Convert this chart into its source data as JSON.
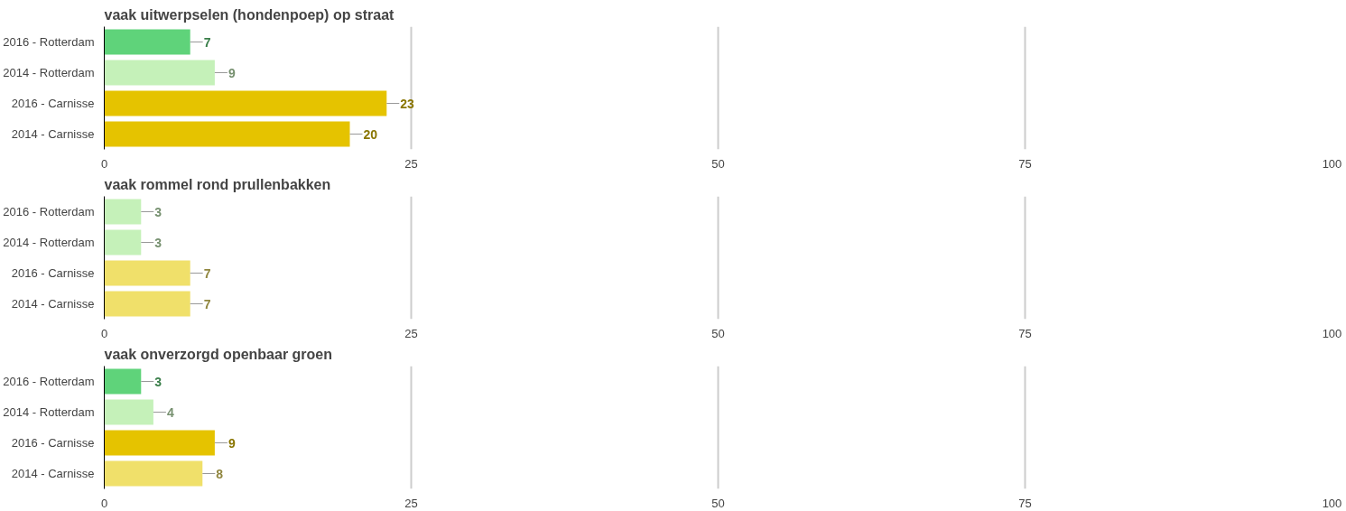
{
  "chart_data": [
    {
      "type": "bar",
      "orientation": "horizontal",
      "title": "vaak uitwerpselen (hondenpoep) op straat",
      "categories": [
        "2016 - Rotterdam",
        "2014 - Rotterdam",
        "2016 - Carnisse",
        "2014 - Carnisse"
      ],
      "values": [
        7,
        9,
        23,
        20
      ],
      "colors": [
        "#5fd37a",
        "#c5f1b9",
        "#e5c300",
        "#e5c300"
      ],
      "xlim": [
        0,
        100
      ],
      "xticks": [
        0,
        25,
        50,
        75,
        100
      ],
      "grid": "x",
      "data_labels": true
    },
    {
      "type": "bar",
      "orientation": "horizontal",
      "title": "vaak rommel rond prullenbakken",
      "categories": [
        "2016 - Rotterdam",
        "2014 - Rotterdam",
        "2016 - Carnisse",
        "2014 - Carnisse"
      ],
      "values": [
        3,
        3,
        7,
        7
      ],
      "colors": [
        "#c5f1b9",
        "#c5f1b9",
        "#f0e06a",
        "#f0e06a"
      ],
      "xlim": [
        0,
        100
      ],
      "xticks": [
        0,
        25,
        50,
        75,
        100
      ],
      "grid": "x",
      "data_labels": true
    },
    {
      "type": "bar",
      "orientation": "horizontal",
      "title": "vaak onverzorgd openbaar groen",
      "categories": [
        "2016 - Rotterdam",
        "2014 - Rotterdam",
        "2016 - Carnisse",
        "2014 - Carnisse"
      ],
      "values": [
        3,
        4,
        9,
        8
      ],
      "colors": [
        "#5fd37a",
        "#c5f1b9",
        "#e5c300",
        "#f0e06a"
      ],
      "xlim": [
        0,
        100
      ],
      "xticks": [
        0,
        25,
        50,
        75,
        100
      ],
      "grid": "x",
      "data_labels": true
    }
  ]
}
